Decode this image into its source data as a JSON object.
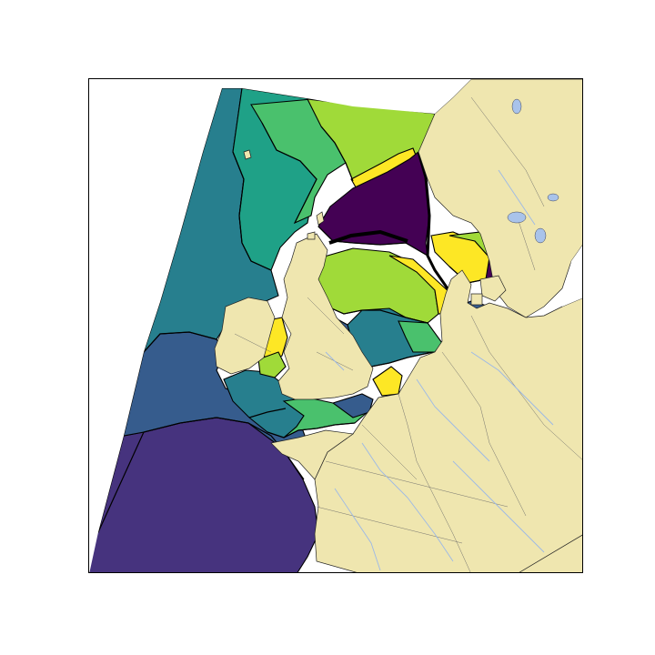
{
  "map": {
    "projection": "conic",
    "colormap": "viridis",
    "land_color": "#efe6af",
    "ocean_outside_color": "#ffffff",
    "coastline_color": "#000000",
    "river_color": "#9bb8e8",
    "contour_line_color": "#000000",
    "palette": [
      "#440154",
      "#46337e",
      "#365c8d",
      "#277f8e",
      "#1fa187",
      "#4ac16d",
      "#a0da39",
      "#fde725"
    ]
  }
}
